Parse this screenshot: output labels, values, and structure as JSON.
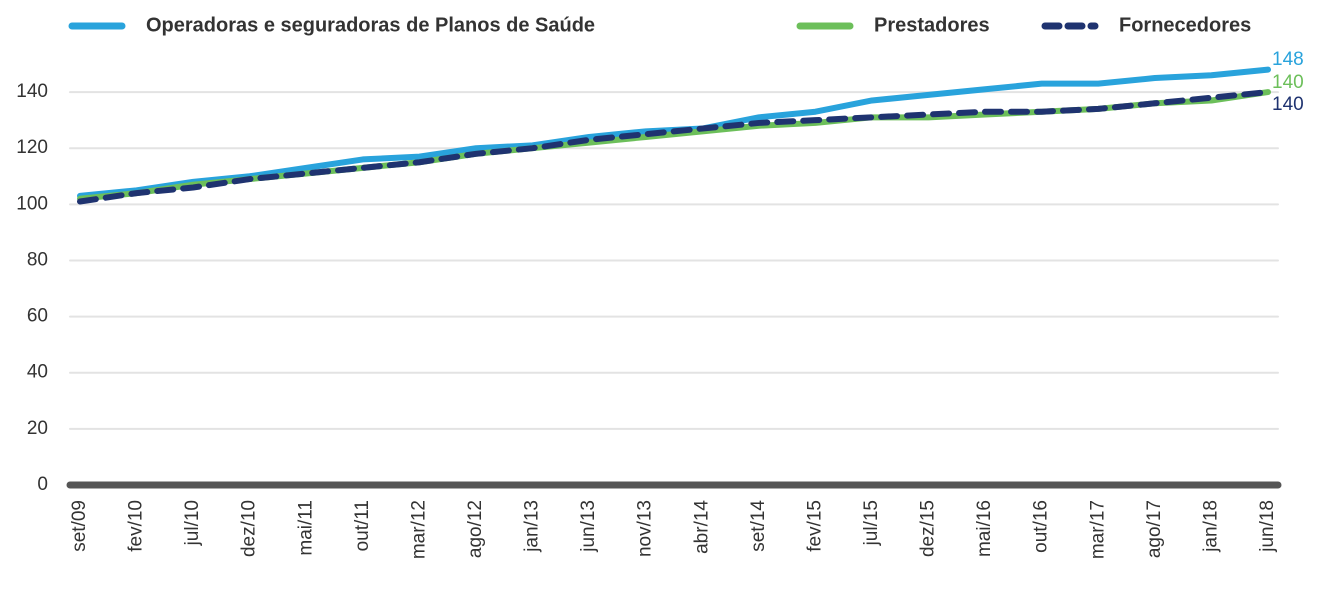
{
  "chart_data": {
    "type": "line",
    "categories": [
      "set/09",
      "fev/10",
      "jul/10",
      "dez/10",
      "mai/11",
      "out/11",
      "mar/12",
      "ago/12",
      "jan/13",
      "jun/13",
      "nov/13",
      "abr/14",
      "set/14",
      "fev/15",
      "jul/15",
      "dez/15",
      "mai/16",
      "out/16",
      "mar/17",
      "ago/17",
      "jan/18",
      "jun/18"
    ],
    "series": [
      {
        "name": "Operadoras e seguradoras de Planos de Saúde",
        "color": "#29a3dc",
        "dash": false,
        "values": [
          103,
          105,
          108,
          110,
          113,
          116,
          117,
          120,
          121,
          124,
          126,
          127,
          131,
          133,
          137,
          139,
          141,
          143,
          143,
          145,
          146,
          148
        ]
      },
      {
        "name": "Prestadores",
        "color": "#6cbf5a",
        "dash": false,
        "values": [
          102,
          104,
          107,
          109,
          111,
          113,
          115,
          118,
          120,
          122,
          124,
          126,
          128,
          129,
          131,
          131,
          132,
          133,
          134,
          136,
          137,
          140
        ]
      },
      {
        "name": "Fornecedores",
        "color": "#1f3370",
        "dash": true,
        "values": [
          101,
          104,
          106,
          109,
          111,
          113,
          115,
          118,
          120,
          123,
          125,
          127,
          129,
          130,
          131,
          132,
          133,
          133,
          134,
          136,
          138,
          140
        ]
      }
    ],
    "ylim": [
      0,
      150
    ],
    "yticks": [
      0,
      20,
      40,
      60,
      80,
      100,
      120,
      140
    ],
    "grid": true,
    "legend": "top"
  }
}
